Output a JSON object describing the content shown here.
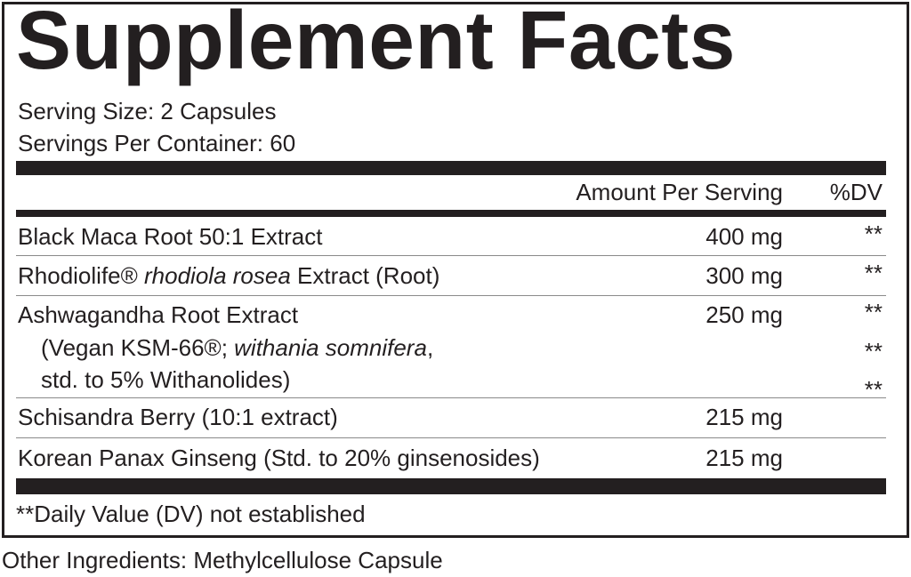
{
  "title": "Supplement Facts",
  "serving_size": "Serving Size: 2 Capsules",
  "servings_per_container": "Servings Per Container: 60",
  "header": {
    "amount": "Amount Per Serving",
    "dv": "%DV"
  },
  "rows": [
    {
      "name": "Black Maca Root 50:1 Extract",
      "amount": "400 mg",
      "dv": "**"
    },
    {
      "name_pre": "Rhodiolife® ",
      "name_italic": "rhodiola rosea",
      "name_post": " Extract (Root)",
      "amount": "300 mg",
      "dv": "**"
    },
    {
      "name": "Ashwagandha Root Extract",
      "amount": "250 mg",
      "dv": "**",
      "sub1_pre": "(Vegan KSM-66®; ",
      "sub1_italic": "withania somnifera",
      "sub1_post": ",",
      "sub1_dv": "**",
      "sub2": "std. to 5% Withanolides)",
      "sub2_dv": "**"
    },
    {
      "name": "Schisandra Berry (10:1 extract)",
      "amount": "215 mg"
    },
    {
      "name": "Korean Panax Ginseng (Std. to 20% ginsenosides)",
      "amount": "215 mg"
    }
  ],
  "footnote": "**Daily Value (DV) not established",
  "other_ingredients": "Other Ingredients: Methylcellulose Capsule"
}
